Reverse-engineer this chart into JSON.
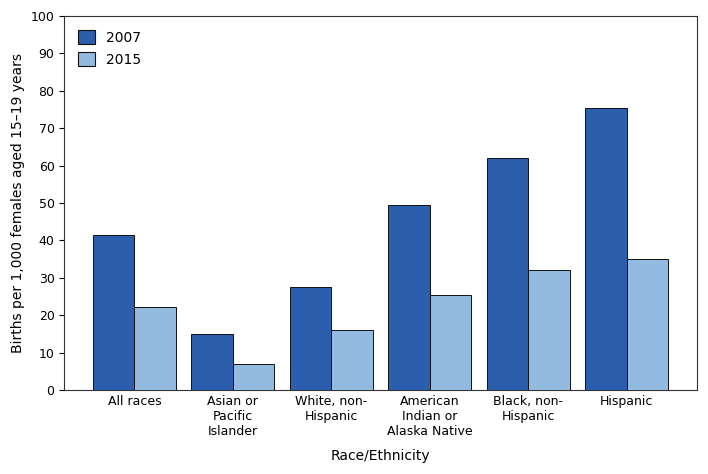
{
  "categories": [
    "All races",
    "Asian or\nPacific\nIslander",
    "White, non-\nHispanic",
    "American\nIndian or\nAlaska Native",
    "Black, non-\nHispanic",
    "Hispanic"
  ],
  "values_2007": [
    41.5,
    15.0,
    27.5,
    49.5,
    62.0,
    75.5
  ],
  "values_2015": [
    22.3,
    6.9,
    16.0,
    25.5,
    32.0,
    34.9
  ],
  "color_2007": "#2B5EAC",
  "color_2015": "#92BBDF",
  "ylabel": "Births per 1,000 females aged 15–19 years",
  "xlabel": "Race/Ethnicity",
  "legend_2007": "2007",
  "legend_2015": "2015",
  "ylim": [
    0,
    100
  ],
  "yticks": [
    0,
    10,
    20,
    30,
    40,
    50,
    60,
    70,
    80,
    90,
    100
  ],
  "bar_width": 0.42,
  "background_color": "#ffffff",
  "axis_fontsize": 10,
  "tick_fontsize": 9,
  "legend_fontsize": 10
}
